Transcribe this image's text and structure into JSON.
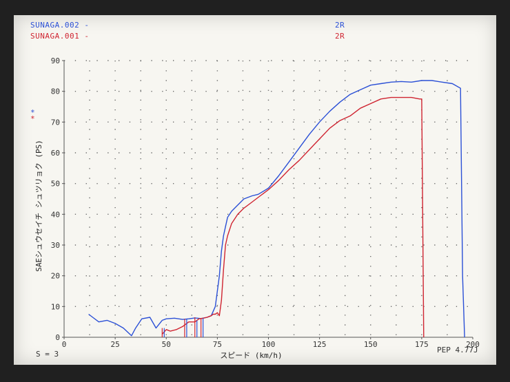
{
  "legend": {
    "series1_name": "SUNAGA.002",
    "series1_mark": "-",
    "series1_tag": "2R",
    "series2_name": "SUNAGA.001",
    "series2_mark": "-",
    "series2_tag": "2R"
  },
  "left_marks": {
    "red": "*",
    "blue": "*"
  },
  "footer": {
    "left_text": "S = 3",
    "right_text": "PEP 4.77J"
  },
  "colors": {
    "series1": "#2a4fd6",
    "series2": "#cf2330",
    "axis": "#555555",
    "grid": "#666666"
  },
  "chart_data": {
    "type": "line",
    "xlabel": "スピード (km/h)",
    "ylabel": "SAEシュウセイチ シュツリョク (PS)",
    "xlim": [
      0,
      200
    ],
    "ylim": [
      0,
      90
    ],
    "x_ticks": [
      0,
      25,
      50,
      75,
      100,
      125,
      150,
      175,
      200
    ],
    "y_ticks": [
      0,
      10,
      20,
      30,
      40,
      50,
      60,
      70,
      80,
      90
    ],
    "grid": true,
    "series": [
      {
        "name": "SUNAGA.002",
        "x": [
          12,
          14,
          17,
          21,
          25,
          29,
          33,
          35,
          38,
          42,
          45,
          48,
          50,
          54,
          58,
          61,
          64,
          67,
          70,
          72,
          74,
          76,
          77,
          78,
          79,
          80,
          82,
          85,
          88,
          92,
          95,
          100,
          105,
          110,
          115,
          120,
          125,
          130,
          135,
          140,
          145,
          150,
          155,
          160,
          165,
          170,
          175,
          180,
          185,
          190,
          194,
          195,
          196
        ],
        "y": [
          7.5,
          6.5,
          5,
          5.5,
          4.5,
          3,
          0.5,
          3,
          6,
          6.5,
          3,
          5.5,
          6,
          6.2,
          5.8,
          6,
          6.3,
          6.1,
          6.5,
          7,
          10,
          20,
          28,
          33,
          36,
          39,
          41,
          43,
          45,
          46,
          46.5,
          48.5,
          52.5,
          57,
          61.5,
          66,
          70,
          73.5,
          76.5,
          79,
          80.5,
          82,
          82.5,
          83,
          83.2,
          83,
          83.5,
          83.5,
          83,
          82.5,
          81,
          20,
          0
        ]
      },
      {
        "name": "SUNAGA.001",
        "x": [
          48,
          50,
          52,
          55,
          58,
          61,
          64,
          66,
          68,
          70,
          72,
          73,
          74,
          75,
          76,
          77,
          78,
          79,
          80,
          82,
          85,
          88,
          92,
          96,
          100,
          105,
          110,
          115,
          120,
          125,
          130,
          135,
          140,
          145,
          150,
          155,
          160,
          165,
          170,
          174,
          175,
          176
        ],
        "y": [
          1,
          2.5,
          2,
          2.5,
          3.5,
          5,
          5,
          6,
          6.2,
          6.5,
          7,
          7.5,
          7.5,
          8,
          7,
          12,
          22,
          30,
          33,
          37,
          40,
          42,
          44,
          46,
          48,
          51,
          54.5,
          57.5,
          61,
          64.5,
          68,
          70.5,
          72,
          74.5,
          76,
          77.5,
          78,
          78,
          78,
          77.5,
          77.5,
          0
        ]
      }
    ]
  }
}
